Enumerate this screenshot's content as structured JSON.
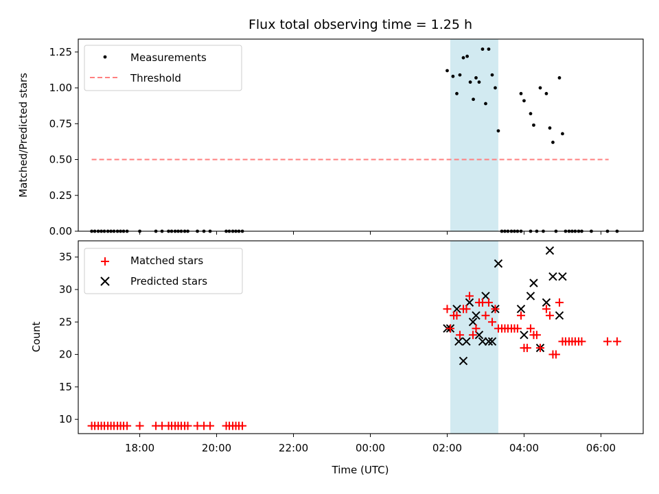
{
  "chart_data": [
    {
      "type": "scatter",
      "title": "Flux total observing time = 1.25 h",
      "ylabel": "Matched/Predicted stars",
      "xlabel": "",
      "xlim_hours": [
        16.4,
        31.1
      ],
      "ylim": [
        0,
        1.34
      ],
      "yticks": [
        0.0,
        0.25,
        0.5,
        0.75,
        1.0,
        1.25
      ],
      "ytick_labels": [
        "0.00",
        "0.25",
        "0.50",
        "0.75",
        "1.00",
        "1.25"
      ],
      "shaded_region_hours": [
        26.08,
        27.33
      ],
      "legend": {
        "position": "top-left",
        "entries": [
          "Measurements",
          "Threshold"
        ]
      },
      "threshold": {
        "name": "Threshold",
        "value": 0.5,
        "x_range_hours": [
          16.75,
          30.2
        ],
        "color": "#ff7f7f"
      },
      "series": [
        {
          "name": "Measurements",
          "marker": "dot",
          "color": "#000000",
          "points": [
            [
              16.75,
              0
            ],
            [
              16.83,
              0
            ],
            [
              16.92,
              0
            ],
            [
              17.0,
              0
            ],
            [
              17.08,
              0
            ],
            [
              17.17,
              0
            ],
            [
              17.25,
              0
            ],
            [
              17.33,
              0
            ],
            [
              17.42,
              0
            ],
            [
              17.5,
              0
            ],
            [
              17.58,
              0
            ],
            [
              17.67,
              0
            ],
            [
              18.0,
              0
            ],
            [
              18.42,
              0
            ],
            [
              18.58,
              0
            ],
            [
              18.75,
              0
            ],
            [
              18.83,
              0
            ],
            [
              18.92,
              0
            ],
            [
              19.0,
              0
            ],
            [
              19.08,
              0
            ],
            [
              19.17,
              0
            ],
            [
              19.25,
              0
            ],
            [
              19.5,
              0
            ],
            [
              19.67,
              0
            ],
            [
              19.83,
              0
            ],
            [
              20.25,
              0
            ],
            [
              20.33,
              0
            ],
            [
              20.42,
              0
            ],
            [
              20.5,
              0
            ],
            [
              20.58,
              0
            ],
            [
              20.67,
              0
            ],
            [
              26.0,
              1.12
            ],
            [
              26.15,
              1.08
            ],
            [
              26.25,
              0.96
            ],
            [
              26.33,
              1.09
            ],
            [
              26.42,
              1.21
            ],
            [
              26.52,
              1.22
            ],
            [
              26.6,
              1.04
            ],
            [
              26.68,
              0.92
            ],
            [
              26.75,
              1.07
            ],
            [
              26.83,
              1.04
            ],
            [
              26.92,
              1.27
            ],
            [
              27.0,
              0.89
            ],
            [
              27.08,
              1.27
            ],
            [
              27.17,
              1.09
            ],
            [
              27.25,
              1.0
            ],
            [
              27.33,
              0.7
            ],
            [
              27.42,
              0
            ],
            [
              27.5,
              0
            ],
            [
              27.58,
              0
            ],
            [
              27.67,
              0
            ],
            [
              27.75,
              0
            ],
            [
              27.83,
              0
            ],
            [
              27.92,
              0
            ],
            [
              27.92,
              0.96
            ],
            [
              28.0,
              0.91
            ],
            [
              28.17,
              0.82
            ],
            [
              28.25,
              0.74
            ],
            [
              28.42,
              1.0
            ],
            [
              28.58,
              0.96
            ],
            [
              28.67,
              0.72
            ],
            [
              28.75,
              0.62
            ],
            [
              28.92,
              1.07
            ],
            [
              29.0,
              0.68
            ],
            [
              28.17,
              0
            ],
            [
              28.33,
              0
            ],
            [
              28.5,
              0
            ],
            [
              28.83,
              0
            ],
            [
              29.08,
              0
            ],
            [
              29.17,
              0
            ],
            [
              29.25,
              0
            ],
            [
              29.33,
              0
            ],
            [
              29.42,
              0
            ],
            [
              29.5,
              0
            ],
            [
              29.75,
              0
            ],
            [
              30.17,
              0
            ],
            [
              30.42,
              0
            ]
          ]
        }
      ]
    },
    {
      "type": "scatter",
      "title": "",
      "ylabel": "Count",
      "xlabel": "Time (UTC)",
      "xlim_hours": [
        16.4,
        31.1
      ],
      "ylim": [
        7.8,
        37.5
      ],
      "yticks": [
        10,
        15,
        20,
        25,
        30,
        35
      ],
      "ytick_labels": [
        "10",
        "15",
        "20",
        "25",
        "30",
        "35"
      ],
      "xticks_hours": [
        18,
        20,
        22,
        24,
        26,
        28,
        30
      ],
      "xtick_labels": [
        "18:00",
        "20:00",
        "22:00",
        "00:00",
        "02:00",
        "04:00",
        "06:00"
      ],
      "shaded_region_hours": [
        26.08,
        27.33
      ],
      "legend": {
        "position": "top-left",
        "entries": [
          "Matched stars",
          "Predicted stars"
        ]
      },
      "series": [
        {
          "name": "Matched stars",
          "marker": "plus",
          "color": "#ff0000",
          "points": [
            [
              16.75,
              9
            ],
            [
              16.83,
              9
            ],
            [
              16.92,
              9
            ],
            [
              17.0,
              9
            ],
            [
              17.08,
              9
            ],
            [
              17.17,
              9
            ],
            [
              17.25,
              9
            ],
            [
              17.33,
              9
            ],
            [
              17.42,
              9
            ],
            [
              17.5,
              9
            ],
            [
              17.58,
              9
            ],
            [
              17.67,
              9
            ],
            [
              18.0,
              9
            ],
            [
              18.42,
              9
            ],
            [
              18.58,
              9
            ],
            [
              18.75,
              9
            ],
            [
              18.83,
              9
            ],
            [
              18.92,
              9
            ],
            [
              19.0,
              9
            ],
            [
              19.08,
              9
            ],
            [
              19.17,
              9
            ],
            [
              19.25,
              9
            ],
            [
              19.5,
              9
            ],
            [
              19.67,
              9
            ],
            [
              19.83,
              9
            ],
            [
              20.25,
              9
            ],
            [
              20.33,
              9
            ],
            [
              20.42,
              9
            ],
            [
              20.5,
              9
            ],
            [
              20.58,
              9
            ],
            [
              20.67,
              9
            ],
            [
              26.0,
              27
            ],
            [
              26.08,
              24
            ],
            [
              26.17,
              26
            ],
            [
              26.25,
              26
            ],
            [
              26.33,
              23
            ],
            [
              26.42,
              27
            ],
            [
              26.5,
              27
            ],
            [
              26.58,
              29
            ],
            [
              26.67,
              23
            ],
            [
              26.75,
              24
            ],
            [
              26.83,
              28
            ],
            [
              26.92,
              28
            ],
            [
              27.0,
              26
            ],
            [
              27.08,
              28
            ],
            [
              27.17,
              25
            ],
            [
              27.25,
              27
            ],
            [
              27.33,
              24
            ],
            [
              27.42,
              24
            ],
            [
              27.5,
              24
            ],
            [
              27.58,
              24
            ],
            [
              27.67,
              24
            ],
            [
              27.75,
              24
            ],
            [
              27.83,
              24
            ],
            [
              27.92,
              26
            ],
            [
              28.0,
              21
            ],
            [
              28.08,
              21
            ],
            [
              28.17,
              24
            ],
            [
              28.25,
              23
            ],
            [
              28.33,
              23
            ],
            [
              28.42,
              21
            ],
            [
              28.58,
              27
            ],
            [
              28.67,
              26
            ],
            [
              28.75,
              20
            ],
            [
              28.83,
              20
            ],
            [
              28.92,
              28
            ],
            [
              29.0,
              22
            ],
            [
              29.08,
              22
            ],
            [
              29.17,
              22
            ],
            [
              29.25,
              22
            ],
            [
              29.33,
              22
            ],
            [
              29.42,
              22
            ],
            [
              29.5,
              22
            ],
            [
              30.17,
              22
            ],
            [
              30.42,
              22
            ]
          ]
        },
        {
          "name": "Predicted stars",
          "marker": "x",
          "color": "#000000",
          "points": [
            [
              26.0,
              24
            ],
            [
              26.08,
              24
            ],
            [
              26.25,
              27
            ],
            [
              26.3,
              22
            ],
            [
              26.42,
              19
            ],
            [
              26.5,
              22
            ],
            [
              26.58,
              28
            ],
            [
              26.67,
              25
            ],
            [
              26.75,
              26
            ],
            [
              26.83,
              23
            ],
            [
              26.92,
              22
            ],
            [
              27.0,
              29
            ],
            [
              27.08,
              22
            ],
            [
              27.17,
              22
            ],
            [
              27.25,
              27
            ],
            [
              27.33,
              34
            ],
            [
              27.92,
              27
            ],
            [
              28.0,
              23
            ],
            [
              28.17,
              29
            ],
            [
              28.25,
              31
            ],
            [
              28.42,
              21
            ],
            [
              28.58,
              28
            ],
            [
              28.67,
              36
            ],
            [
              28.75,
              32
            ],
            [
              28.92,
              26
            ],
            [
              29.0,
              32
            ]
          ]
        }
      ]
    }
  ]
}
